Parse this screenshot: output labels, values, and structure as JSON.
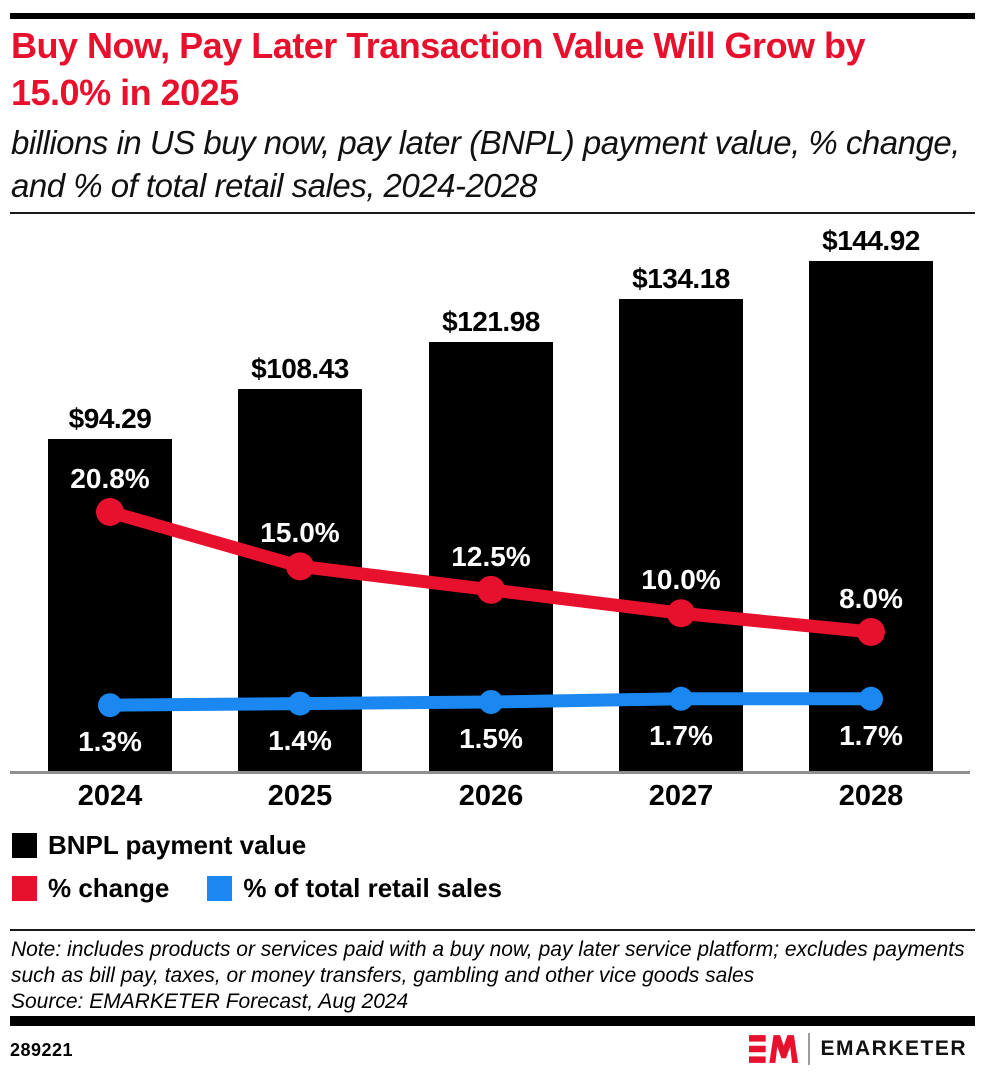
{
  "header": {
    "title": "Buy Now, Pay Later Transaction Value Will Grow by 15.0% in 2025",
    "subtitle": "billions in US buy now, pay later (BNPL) payment value, % change, and % of total retail sales, 2024-2028"
  },
  "chart_data": {
    "type": "bar",
    "title": "Buy Now, Pay Later Transaction Value Will Grow by 15.0% in 2025",
    "subtitle": "billions in US buy now, pay later (BNPL) payment value, % change, and % of total retail sales, 2024-2028",
    "categories": [
      "2024",
      "2025",
      "2026",
      "2027",
      "2028"
    ],
    "series": [
      {
        "name": "BNPL payment value",
        "type": "bar",
        "unit": "US$ billions",
        "values": [
          94.29,
          108.43,
          121.98,
          134.18,
          144.92
        ],
        "labels": [
          "$94.29",
          "$108.43",
          "$121.98",
          "$134.18",
          "$144.92"
        ],
        "color": "#000000"
      },
      {
        "name": "% change",
        "type": "line",
        "unit": "%",
        "values": [
          20.8,
          15.0,
          12.5,
          10.0,
          8.0
        ],
        "labels": [
          "20.8%",
          "15.0%",
          "12.5%",
          "10.0%",
          "8.0%"
        ],
        "color": "#e8112d"
      },
      {
        "name": "% of total retail sales",
        "type": "line",
        "unit": "%",
        "values": [
          1.3,
          1.4,
          1.5,
          1.7,
          1.7
        ],
        "labels": [
          "1.3%",
          "1.4%",
          "1.5%",
          "1.7%",
          "1.7%"
        ],
        "color": "#1b87f0"
      }
    ],
    "xlabel": "",
    "ylabel": "",
    "grid": false,
    "legend_position": "bottom"
  },
  "legend": {
    "items": [
      {
        "label": "BNPL payment value",
        "color": "#000000"
      },
      {
        "label": "% change",
        "color": "#e8112d"
      },
      {
        "label": "% of total retail sales",
        "color": "#1b87f0"
      }
    ]
  },
  "note": {
    "note_text": "Note: includes products or services paid with a buy now, pay later service platform; excludes payments such as bill pay, taxes, or money transfers, gambling and other vice goods sales",
    "source_text": "Source: EMARKETER Forecast, Aug 2024"
  },
  "footer": {
    "chart_id": "289221",
    "brand_monogram": "EM",
    "brand_name": "EMARKETER"
  },
  "colors": {
    "accent_red": "#e8112d",
    "accent_blue": "#1b87f0",
    "bar_black": "#000000"
  }
}
